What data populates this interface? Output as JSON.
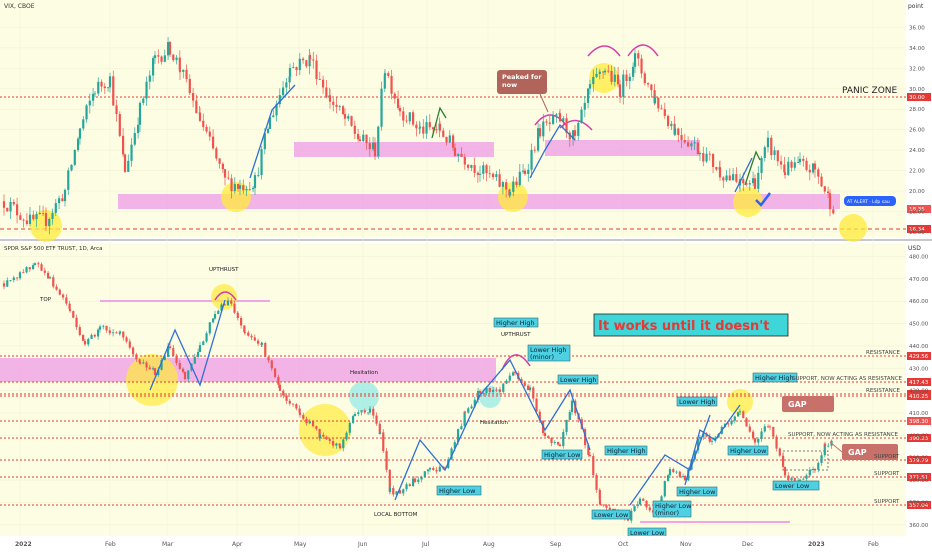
{
  "colors": {
    "up": "#26a69a",
    "down": "#ef5350",
    "pink": "#f0a6e6",
    "yellow": "#ffeb3b",
    "teal_label": "#4dd0e1",
    "brown": "#b0645a",
    "red_line": "#e53935",
    "gap_label": "#c8706a"
  },
  "top_panel": {
    "symbol": "VIX, CBOE",
    "currency": "point",
    "ticks": [
      "36.00",
      "34.00",
      "32.00",
      "30.00",
      "28.00",
      "26.00",
      "24.00",
      "22.00",
      "20.00",
      "18.00",
      "16.00"
    ],
    "ylim": [
      15.5,
      38
    ],
    "panic_zone": "PANIC ZONE",
    "peaked": "Peaked for now",
    "panic_price": "30.00",
    "last_price": "18.35",
    "alert_price": "16.34",
    "button": "AT ALERT · Lớp sau"
  },
  "bottom_panel": {
    "symbol": "SPDR S&P 500 ETF TRUST, 1D, Arca",
    "currency": "USD",
    "ticks": [
      "480.00",
      "470.00",
      "460.00",
      "450.00",
      "440.00",
      "430.00",
      "420.00",
      "410.00",
      "400.00",
      "390.00",
      "380.00",
      "370.00",
      "360.00"
    ],
    "ylim": [
      355,
      482
    ],
    "headline": "It works until it doesn't",
    "labels": {
      "top": "TOP",
      "upthrust1": "UPTHRUST",
      "upthrust2": "UPTHRUST",
      "hesitation1": "Hesitation",
      "hesitation2": "Hesitation",
      "local_bottom": "LOCAL BOTTOM",
      "higher_low_1": "Higher Low",
      "higher_high_1": "Higher High",
      "lower_high_minor": "Lower High (minor)",
      "lower_high_1": "Lower High",
      "higher_low_2": "Higher Low",
      "higher_high_2": "Higher High",
      "lower_low_1": "Lower Low",
      "lower_low_2": "Lower Low",
      "higher_low_minor": "Higher Low (minor)",
      "lower_high_2": "Lower High",
      "higher_low_3": "Higher Low",
      "higher_high_3": "Higher High",
      "higher_low_4": "Higher Low",
      "lower_low_3": "Lower Low",
      "gap1": "GAP",
      "gap2": "GAP"
    },
    "levels": [
      {
        "text": "RESISTANCE",
        "price": "429.56"
      },
      {
        "text": "SUPPORT, NOW ACTING AS RESISTANCE",
        "price": "417.43"
      },
      {
        "text": "RESISTANCE",
        "price": "411.11"
      },
      {
        "text": "",
        "price": "410.25"
      },
      {
        "text": "",
        "price": "398.30"
      },
      {
        "text": "SUPPORT, NOW ACTING AS RESISTANCE",
        "price": "390.23"
      },
      {
        "text": "SUPPORT",
        "price": "379.79"
      },
      {
        "text": "SUPPORT",
        "price": "371.51"
      },
      {
        "text": "SUPPORT",
        "price": "357.04"
      }
    ]
  },
  "time_axis": [
    "2022",
    "Feb",
    "Mar",
    "Apr",
    "May",
    "Jun",
    "Jul",
    "Aug",
    "Sep",
    "Oct",
    "Nov",
    "Dec",
    "2023",
    "Feb"
  ],
  "chart_data": [
    {
      "type": "candlestick",
      "title": "VIX, CBOE",
      "ylabel": "point",
      "ylim": [
        15.5,
        38
      ],
      "x": [
        "2022",
        "Feb",
        "Mar",
        "Apr",
        "May",
        "Jun",
        "Jul",
        "Aug",
        "Sep",
        "Oct",
        "Nov",
        "Dec",
        "2023"
      ],
      "close": [
        17.5,
        28,
        32,
        22,
        33,
        28,
        26,
        20,
        27,
        32,
        25,
        20,
        18.35
      ]
    },
    {
      "type": "candlestick",
      "title": "SPDR S&P 500 ETF TRUST, 1D, Arca",
      "ylabel": "USD",
      "ylim": [
        355,
        482
      ],
      "x": [
        "2022",
        "Feb",
        "Mar",
        "Apr",
        "May",
        "Jun",
        "Jul",
        "Aug",
        "Sep",
        "Oct",
        "Nov",
        "Dec",
        "2023"
      ],
      "close": [
        477,
        440,
        430,
        455,
        410,
        380,
        390,
        428,
        395,
        360,
        390,
        405,
        398.3
      ]
    }
  ]
}
